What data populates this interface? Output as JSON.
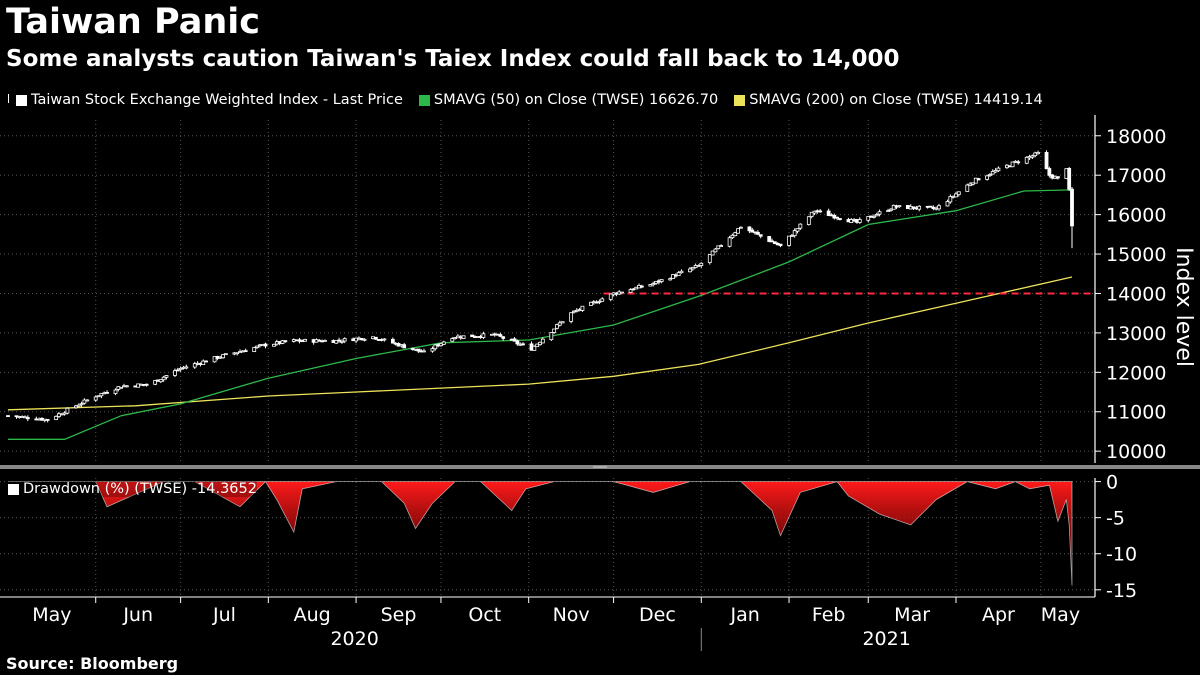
{
  "title": "Taiwan Panic",
  "subtitle": "Some analysts caution Taiwan's Taiex Index could fall back to 14,000",
  "source": "Source: Bloomberg",
  "colors": {
    "background": "#000000",
    "price": "#ffffff",
    "sma50": "#2db84a",
    "sma200": "#ede35a",
    "threshold": "#ff2a40",
    "drawdown": "#ff1a1a"
  },
  "legend": {
    "price": "Taiwan Stock Exchange Weighted Index - Last Price",
    "sma50": "SMAVG (50)  on Close (TWSE) 16626.70",
    "sma200": "SMAVG (200)  on Close (TWSE) 14419.14",
    "drawdown": "Drawdown (%) (TWSE) -14.3652"
  },
  "chart_data": [
    {
      "type": "line",
      "panel": "index",
      "ylabel": "Index level",
      "ylim": [
        9700,
        18400
      ],
      "y_ticks": [
        "10000",
        "11000",
        "12000",
        "13000",
        "14000",
        "15000",
        "16000",
        "17000",
        "18000"
      ],
      "x_months": [
        "May",
        "Jun",
        "Jul",
        "Aug",
        "Sep",
        "Oct",
        "Nov",
        "Dec",
        "Jan",
        "Feb",
        "Mar",
        "Apr",
        "May"
      ],
      "x_years": [
        "2020",
        "2021"
      ],
      "reference_line": {
        "value": 14000,
        "style": "dashed"
      },
      "series": [
        {
          "name": "Taiwan Stock Exchange Weighted Index - Last Price",
          "style": "candlestick",
          "x": [
            "2020-05-01",
            "2020-05-15",
            "2020-06-01",
            "2020-06-10",
            "2020-06-20",
            "2020-07-01",
            "2020-07-15",
            "2020-07-31",
            "2020-08-10",
            "2020-08-25",
            "2020-09-07",
            "2020-09-25",
            "2020-10-05",
            "2020-10-20",
            "2020-11-02",
            "2020-11-16",
            "2020-12-01",
            "2020-12-15",
            "2020-12-31",
            "2021-01-15",
            "2021-01-29",
            "2021-02-10",
            "2021-02-25",
            "2021-03-10",
            "2021-03-25",
            "2021-04-07",
            "2021-04-21",
            "2021-04-30",
            "2021-05-04",
            "2021-05-07",
            "2021-05-10",
            "2021-05-11",
            "2021-05-12"
          ],
          "values": [
            10900,
            10800,
            11400,
            11650,
            11700,
            12100,
            12400,
            12700,
            12800,
            12800,
            12900,
            12500,
            12900,
            12950,
            12600,
            13500,
            14000,
            14250,
            14700,
            15700,
            15200,
            16100,
            15800,
            16200,
            16150,
            16850,
            17300,
            17550,
            17000,
            16900,
            17200,
            16600,
            15700
          ]
        },
        {
          "name": "SMAVG (50)  on Close (TWSE) 16626.70",
          "x": [
            "2020-05-01",
            "2020-05-21",
            "2020-06-10",
            "2020-07-01",
            "2020-08-01",
            "2020-09-01",
            "2020-10-01",
            "2020-11-01",
            "2020-12-01",
            "2021-01-01",
            "2021-02-01",
            "2021-03-01",
            "2021-04-01",
            "2021-04-25",
            "2021-05-12"
          ],
          "values": [
            10300,
            10300,
            10900,
            11200,
            11850,
            12350,
            12750,
            12820,
            13200,
            13950,
            14800,
            15750,
            16100,
            16600,
            16627
          ]
        },
        {
          "name": "SMAVG (200)  on Close (TWSE) 14419.14",
          "x": [
            "2020-05-01",
            "2020-06-15",
            "2020-08-01",
            "2020-09-01",
            "2020-10-01",
            "2020-11-01",
            "2020-12-01",
            "2020-12-31",
            "2021-02-01",
            "2021-03-01",
            "2021-04-01",
            "2021-05-12"
          ],
          "values": [
            11050,
            11150,
            11400,
            11500,
            11600,
            11700,
            11900,
            12200,
            12750,
            13250,
            13750,
            14419
          ]
        }
      ]
    },
    {
      "type": "area",
      "panel": "drawdown",
      "ylim": [
        -16,
        0.5
      ],
      "y_ticks": [
        "0",
        "-5",
        "-10",
        "-15"
      ],
      "series": [
        {
          "name": "Drawdown (%) (TWSE) -14.3652",
          "x": [
            "2020-05-01",
            "2020-05-20",
            "2020-06-01",
            "2020-06-05",
            "2020-06-25",
            "2020-07-06",
            "2020-07-22",
            "2020-07-31",
            "2020-08-04",
            "2020-08-10",
            "2020-08-13",
            "2020-08-25",
            "2020-09-10",
            "2020-09-18",
            "2020-09-22",
            "2020-09-28",
            "2020-10-06",
            "2020-10-15",
            "2020-10-26",
            "2020-10-31",
            "2020-11-10",
            "2020-11-20",
            "2020-12-01",
            "2020-12-15",
            "2020-12-28",
            "2021-01-15",
            "2021-01-26",
            "2021-01-29",
            "2021-02-05",
            "2021-02-18",
            "2021-02-22",
            "2021-03-05",
            "2021-03-16",
            "2021-03-25",
            "2021-04-05",
            "2021-04-15",
            "2021-04-22",
            "2021-04-27",
            "2021-05-04",
            "2021-05-07",
            "2021-05-10",
            "2021-05-11",
            "2021-05-12"
          ],
          "values": [
            0,
            0,
            0,
            -3.5,
            0,
            0,
            -3.5,
            0,
            -2.5,
            -7,
            -1,
            0,
            0,
            -3,
            -6.5,
            -3,
            0,
            0,
            -4,
            -1,
            0,
            0,
            0,
            -1.5,
            0,
            0,
            -4,
            -7.5,
            -1.5,
            0,
            -2,
            -4.5,
            -6,
            -2.5,
            0,
            -1,
            0,
            -1,
            -0.5,
            -5.5,
            -2.5,
            -6,
            -14.4
          ]
        }
      ]
    }
  ]
}
